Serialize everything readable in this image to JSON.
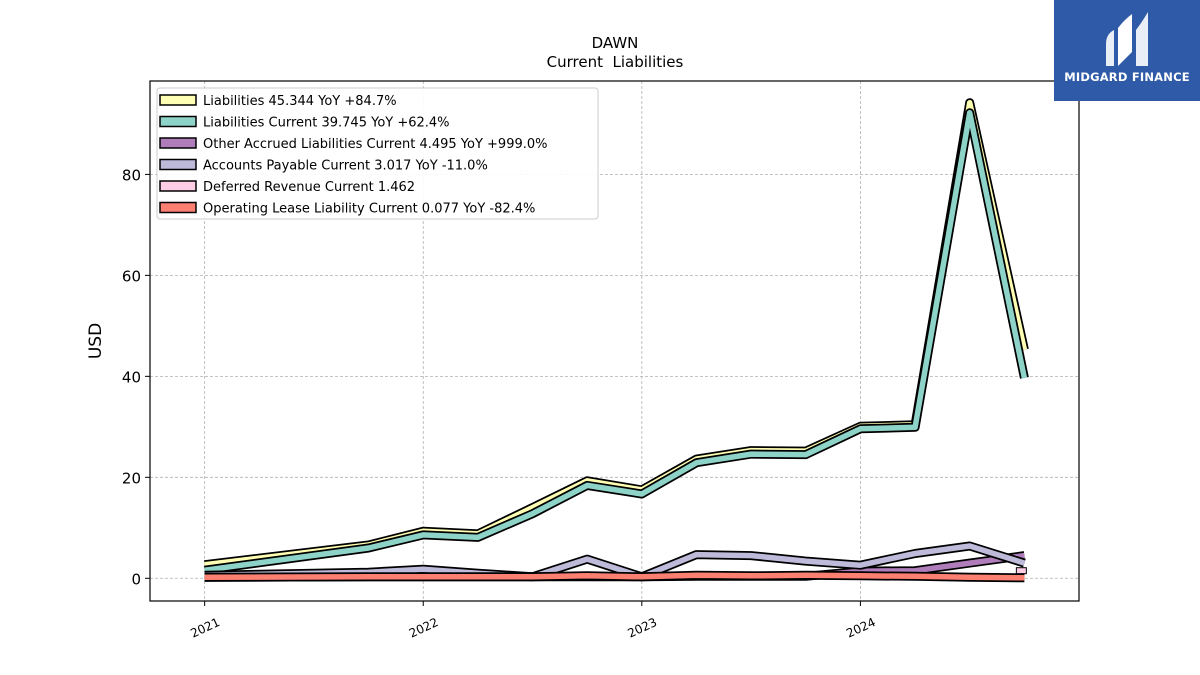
{
  "brand": {
    "name": "MIDGARD FINANCE",
    "bg_color": "#2f5aa8"
  },
  "chart_data": {
    "type": "area",
    "title": "DAWN",
    "subtitle": "Current  Liabilities",
    "ylabel": "USD",
    "xlabel": "",
    "ylim": [
      -4.5,
      98.5
    ],
    "xlim": [
      2020.75,
      2025.0
    ],
    "yticks": [
      0,
      20,
      40,
      60,
      80
    ],
    "xticks": [
      "2021",
      "2022",
      "2023",
      "2024"
    ],
    "grid": true,
    "legend_position": "top-left",
    "x": [
      2021.0,
      2021.75,
      2022.0,
      2022.25,
      2022.5,
      2022.75,
      2023.0,
      2023.25,
      2023.5,
      2023.75,
      2024.0,
      2024.25,
      2024.5,
      2024.75
    ],
    "series": [
      {
        "name": "Liabilities",
        "legend": "Liabilities  45.344 YoY +84.7%",
        "color": "#ffffb3",
        "values": [
          2.7,
          6.6,
          9.3,
          8.8,
          14.0,
          19.3,
          17.5,
          23.6,
          25.3,
          25.2,
          30.1,
          30.4,
          94.2,
          45.3
        ]
      },
      {
        "name": "Liabilities Current",
        "legend": "Liabilities Current  39.745 YoY +62.4%",
        "color": "#8dd3c7",
        "values": [
          1.6,
          6.0,
          8.6,
          8.1,
          12.8,
          18.4,
          16.7,
          22.9,
          24.6,
          24.5,
          29.6,
          29.9,
          92.2,
          39.7
        ]
      },
      {
        "name": "Other Accrued Liabilities Current",
        "legend": "Other Accrued Liabilities Current  4.495 YoY +999.0%",
        "color": "#b07dbb",
        "values": [
          0.2,
          0.3,
          0.3,
          0.3,
          0.3,
          0.3,
          0.3,
          0.4,
          0.4,
          0.4,
          1.4,
          1.5,
          3.0,
          4.5
        ]
      },
      {
        "name": "Accounts Payable Current",
        "legend": "Accounts Payable Current  3.017 YoY -11.0%",
        "color": "#bebada",
        "values": [
          0.6,
          1.2,
          1.8,
          1.0,
          0.3,
          3.8,
          0.3,
          4.7,
          4.5,
          3.4,
          2.6,
          4.9,
          6.4,
          3.0
        ]
      },
      {
        "name": "Deferred Revenue Current",
        "legend": "Deferred Revenue Current  1.462",
        "color": "#fccde5",
        "values": [
          null,
          null,
          null,
          null,
          null,
          null,
          null,
          null,
          null,
          null,
          null,
          null,
          null,
          1.5
        ]
      },
      {
        "name": "Operating Lease Liability Current",
        "legend": "Operating Lease Liability Current  0.077 YoY -82.4%",
        "color": "#fb8072",
        "values": [
          0.2,
          0.3,
          0.3,
          0.3,
          0.3,
          0.5,
          0.3,
          0.6,
          0.5,
          0.6,
          0.5,
          0.4,
          0.2,
          0.1
        ]
      }
    ]
  }
}
